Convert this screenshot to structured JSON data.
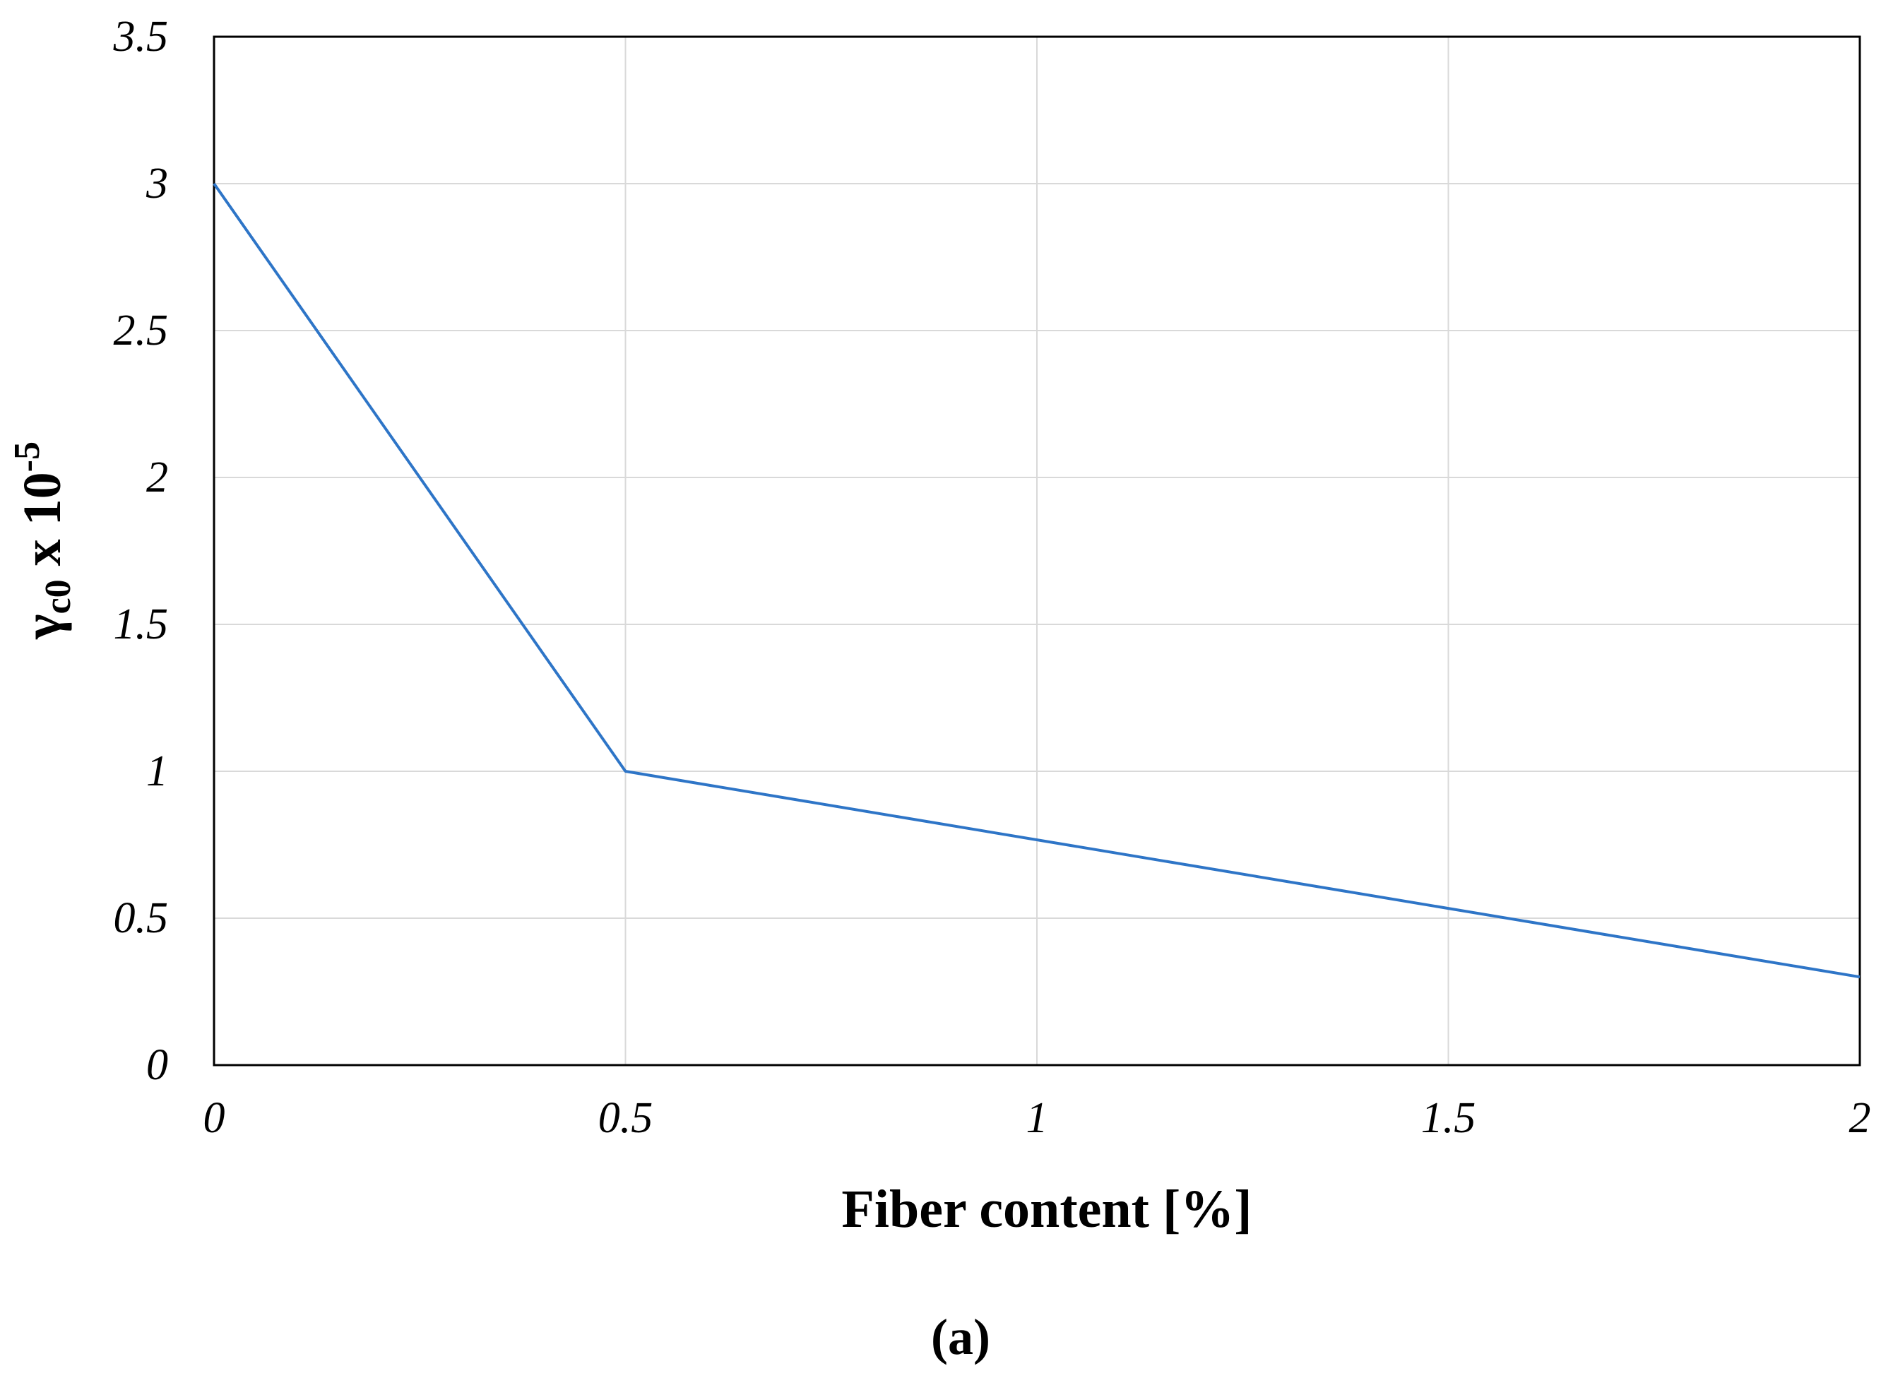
{
  "chart_data": {
    "type": "line",
    "title": "",
    "xlabel": "Fiber content [%]",
    "ylabel": {
      "symbol": "γ",
      "subscript": "c0",
      "multiplier": " x 10",
      "exponent": "-5"
    },
    "panel_label": "(a)",
    "xlim": [
      0,
      2
    ],
    "ylim": [
      0,
      3.5
    ],
    "x_ticks": [
      0,
      0.5,
      1,
      1.5,
      2
    ],
    "x_tick_labels": [
      "0",
      "0.5",
      "1",
      "1.5",
      "2"
    ],
    "y_ticks": [
      0,
      0.5,
      1,
      1.5,
      2,
      2.5,
      3,
      3.5
    ],
    "y_tick_labels": [
      "0",
      "0.5",
      "1",
      "1.5",
      "2",
      "2.5",
      "3",
      "3.5"
    ],
    "grid": true,
    "legend": "none",
    "series": [
      {
        "color": "#2e75c7",
        "points": [
          {
            "x": 0,
            "y": 3.0
          },
          {
            "x": 0.5,
            "y": 1.0
          },
          {
            "x": 2.0,
            "y": 0.3
          }
        ]
      }
    ]
  }
}
